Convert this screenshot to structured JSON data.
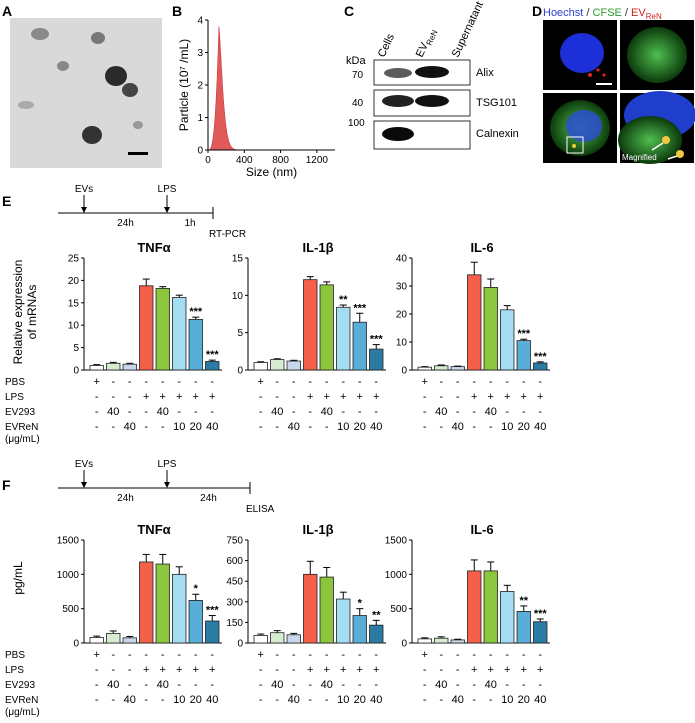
{
  "panels": {
    "A": {
      "letter": "A"
    },
    "B": {
      "letter": "B",
      "chart_data": {
        "type": "area",
        "ylabel": "Particle (10⁷ /mL)",
        "xlabel": "Size (nm)",
        "xlim": [
          0,
          1400
        ],
        "ylim": [
          0,
          4
        ],
        "xticks": [
          "0",
          "400",
          "800",
          "1200"
        ],
        "yticks": [
          "0",
          "1",
          "2",
          "3",
          "4"
        ],
        "peak_x": 120,
        "peak_y": 3.8,
        "color": "#e05a5a"
      }
    },
    "C": {
      "letter": "C",
      "kda_label": "kDa",
      "columns": [
        "Cells",
        "EV",
        "Supernatant"
      ],
      "ev_sub": "ReN",
      "markers": [
        "70",
        "40",
        "100"
      ],
      "bands": [
        "Alix",
        "TSG101",
        "Calnexin"
      ]
    },
    "D": {
      "letter": "D",
      "title_parts": [
        "Hoechst",
        " / ",
        "CFSE",
        " / ",
        "EV",
        "ReN"
      ],
      "title_colors": [
        "#2b3fcf",
        "#333333",
        "#2b9a2b",
        "#333333",
        "#cc2222",
        "#cc2222"
      ],
      "magnified_label": "Magnified"
    },
    "E": {
      "letter": "E",
      "timeline": {
        "labels": [
          "EVs",
          "LPS"
        ],
        "durations": [
          "24h",
          "1h"
        ],
        "end": "RT-PCR"
      },
      "ylabel_lines": [
        "Relative expression",
        "of mRNAs"
      ],
      "row_labels": [
        "PBS",
        "LPS",
        "EV293",
        "EVReN",
        "(μg/mL)"
      ],
      "conditions": {
        "PBS": [
          "+",
          "-",
          "-",
          "-",
          "-",
          "-",
          "-",
          "-"
        ],
        "LPS": [
          "-",
          "-",
          "-",
          "+",
          "+",
          "+",
          "+",
          "+"
        ],
        "EV293": [
          "-",
          "40",
          "-",
          "-",
          "40",
          "-",
          "-",
          "-"
        ],
        "EVReN": [
          "-",
          "-",
          "40",
          "-",
          "-",
          "10",
          "20",
          "40"
        ]
      },
      "chart_data": [
        {
          "type": "bar",
          "title": "TNFα",
          "ylim": [
            0,
            25
          ],
          "yticks": [
            0,
            5,
            10,
            15,
            20,
            25
          ],
          "values": [
            1.0,
            1.5,
            1.3,
            18.8,
            18.2,
            16.2,
            11.3,
            1.9
          ],
          "errors": [
            0.2,
            0.2,
            0.2,
            1.5,
            0.4,
            0.5,
            0.5,
            0.3
          ],
          "sig": [
            "",
            "",
            "",
            "",
            "",
            "",
            "***",
            "***"
          ]
        },
        {
          "type": "bar",
          "title": "IL-1β",
          "ylim": [
            0,
            15
          ],
          "yticks": [
            0,
            5,
            10,
            15
          ],
          "values": [
            1.0,
            1.4,
            1.2,
            12.1,
            11.4,
            8.4,
            6.4,
            2.8
          ],
          "errors": [
            0.1,
            0.1,
            0.1,
            0.4,
            0.4,
            0.3,
            1.2,
            0.6
          ],
          "sig": [
            "",
            "",
            "",
            "",
            "",
            "**",
            "***",
            "***"
          ]
        },
        {
          "type": "bar",
          "title": "IL-6",
          "ylim": [
            0,
            40
          ],
          "yticks": [
            0,
            10,
            20,
            30,
            40
          ],
          "values": [
            1.0,
            1.5,
            1.2,
            34,
            29.5,
            21.5,
            10.5,
            2.5
          ],
          "errors": [
            0.2,
            0.3,
            0.2,
            4.5,
            3.0,
            1.5,
            0.5,
            0.4
          ],
          "sig": [
            "",
            "",
            "",
            "",
            "",
            "",
            "***",
            "***"
          ]
        }
      ]
    },
    "F": {
      "letter": "F",
      "timeline": {
        "labels": [
          "EVs",
          "LPS"
        ],
        "durations": [
          "24h",
          "24h"
        ],
        "end": "ELISA"
      },
      "ylabel": "pg/mL",
      "row_labels": [
        "PBS",
        "LPS",
        "EV293",
        "EVReN",
        "(μg/mL)"
      ],
      "conditions": {
        "PBS": [
          "+",
          "-",
          "-",
          "-",
          "-",
          "-",
          "-",
          "-"
        ],
        "LPS": [
          "-",
          "-",
          "-",
          "+",
          "+",
          "+",
          "+",
          "+"
        ],
        "EV293": [
          "-",
          "40",
          "-",
          "-",
          "40",
          "-",
          "-",
          "-"
        ],
        "EVReN": [
          "-",
          "-",
          "40",
          "-",
          "-",
          "10",
          "20",
          "40"
        ]
      },
      "chart_data": [
        {
          "type": "bar",
          "title": "TNFα",
          "ylim": [
            0,
            1500
          ],
          "yticks": [
            0,
            500,
            1000,
            1500
          ],
          "values": [
            80,
            140,
            75,
            1180,
            1150,
            1000,
            620,
            320
          ],
          "errors": [
            20,
            35,
            20,
            110,
            140,
            110,
            90,
            80
          ],
          "sig": [
            "",
            "",
            "",
            "",
            "",
            "",
            "*",
            "***"
          ]
        },
        {
          "type": "bar",
          "title": "IL-1β",
          "ylim": [
            0,
            750
          ],
          "yticks": [
            0,
            150,
            300,
            450,
            600,
            750
          ],
          "values": [
            55,
            75,
            60,
            500,
            480,
            320,
            200,
            130
          ],
          "errors": [
            10,
            15,
            10,
            95,
            70,
            50,
            50,
            35
          ],
          "sig": [
            "",
            "",
            "",
            "",
            "",
            "",
            "*",
            "**"
          ]
        },
        {
          "type": "bar",
          "title": "IL-6",
          "ylim": [
            0,
            1500
          ],
          "yticks": [
            0,
            500,
            1000,
            1500
          ],
          "values": [
            60,
            70,
            45,
            1050,
            1050,
            750,
            460,
            310
          ],
          "errors": [
            15,
            20,
            10,
            160,
            130,
            90,
            80,
            40
          ],
          "sig": [
            "",
            "",
            "",
            "",
            "",
            "",
            "**",
            "***"
          ]
        }
      ]
    },
    "bar_colors": [
      "#ffffff",
      "#d6ecd0",
      "#c8d8ea",
      "#f4604a",
      "#8cc63e",
      "#a4dcf2",
      "#58aed8",
      "#2a7ca4"
    ]
  }
}
